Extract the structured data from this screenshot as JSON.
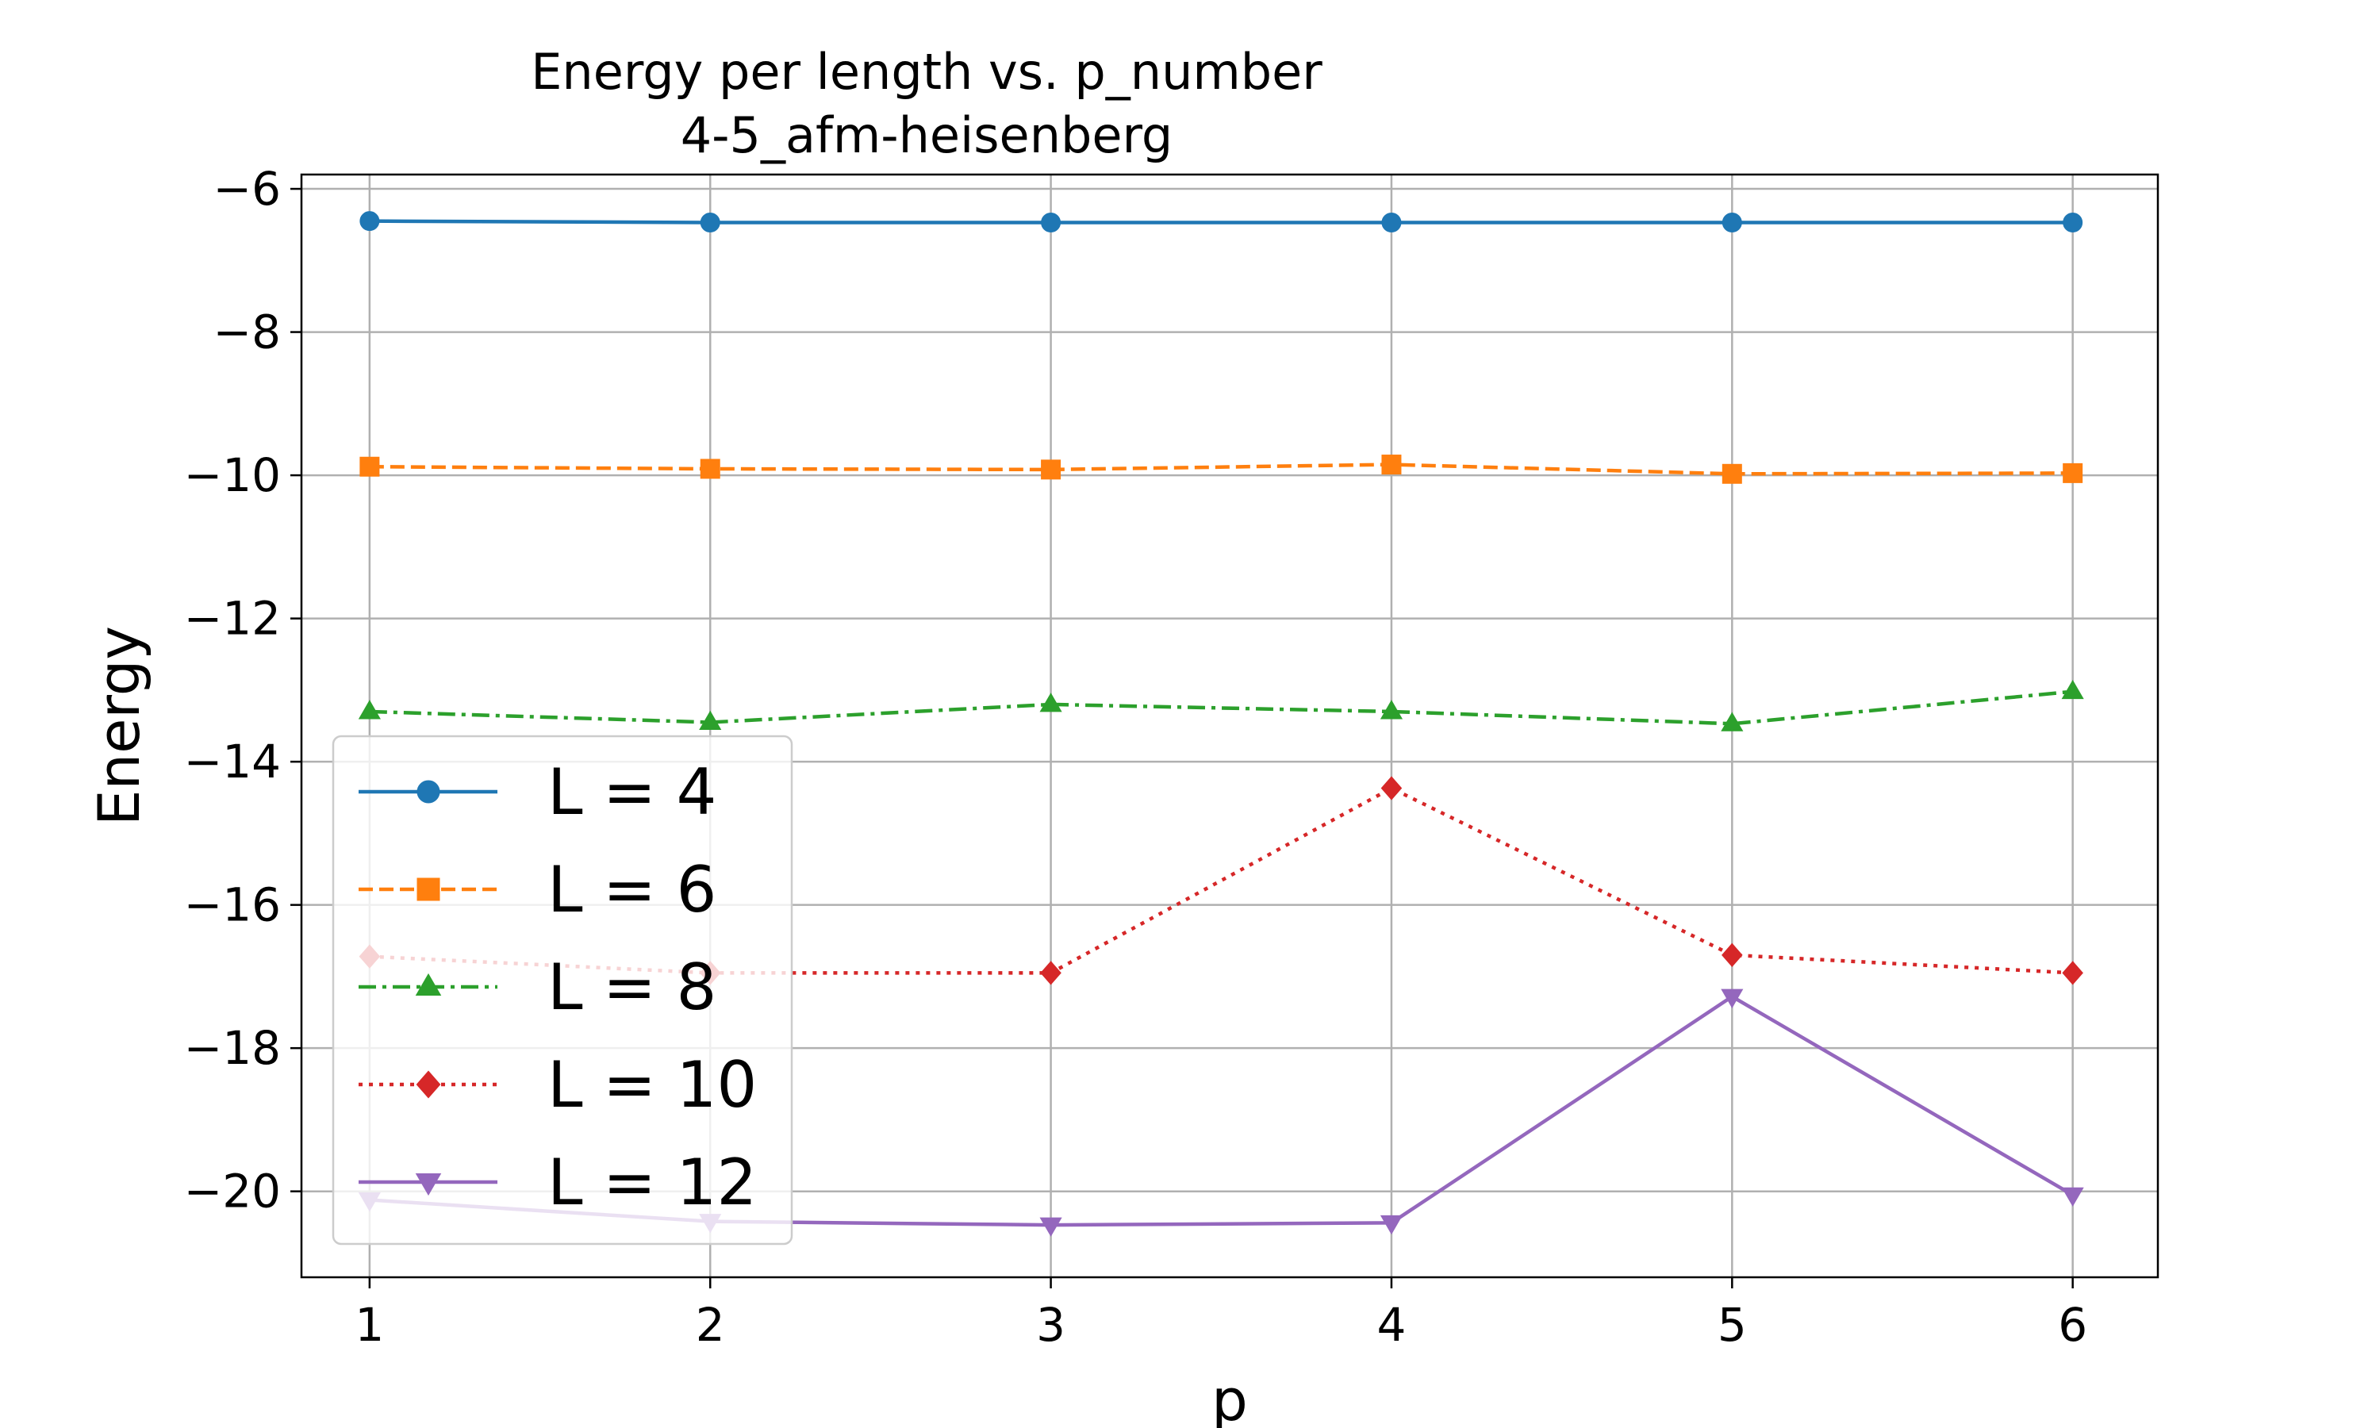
{
  "chart_data": {
    "type": "line",
    "title": "Energy per length vs. p_number",
    "subtitle": "4-5_afm-heisenberg",
    "xlabel": "p",
    "ylabel": "Energy",
    "x": [
      1,
      2,
      3,
      4,
      5,
      6
    ],
    "xlim": [
      0.8,
      6.25
    ],
    "ylim": [
      -21.2,
      -5.8
    ],
    "x_ticks": [
      1,
      2,
      3,
      4,
      5,
      6
    ],
    "y_ticks": [
      -6,
      -8,
      -10,
      -12,
      -14,
      -16,
      -18,
      -20
    ],
    "x_tick_labels": [
      "1",
      "2",
      "3",
      "4",
      "5",
      "6"
    ],
    "y_tick_labels": [
      "−6",
      "−8",
      "−10",
      "−12",
      "−14",
      "−16",
      "−18",
      "−20"
    ],
    "grid": true,
    "legend_position": "lower-left",
    "series": [
      {
        "name": "L = 4",
        "values": [
          -6.45,
          -6.47,
          -6.47,
          -6.47,
          -6.47,
          -6.47
        ],
        "color": "#1f77b4",
        "marker": "circle",
        "dash": "solid"
      },
      {
        "name": "L = 6",
        "values": [
          -9.88,
          -9.91,
          -9.92,
          -9.85,
          -9.98,
          -9.97
        ],
        "color": "#ff7f0e",
        "marker": "square",
        "dash": "dashed"
      },
      {
        "name": "L = 8",
        "values": [
          -13.3,
          -13.45,
          -13.2,
          -13.3,
          -13.47,
          -13.02
        ],
        "color": "#2ca02c",
        "marker": "triangle-up",
        "dash": "dashdot"
      },
      {
        "name": "L = 10",
        "values": [
          -16.72,
          -16.95,
          -16.95,
          -14.37,
          -16.7,
          -16.95
        ],
        "color": "#d62728",
        "marker": "diamond",
        "dash": "dotted"
      },
      {
        "name": "L = 12",
        "values": [
          -20.12,
          -20.42,
          -20.47,
          -20.44,
          -17.28,
          -20.05
        ],
        "color": "#9467bd",
        "marker": "triangle-down",
        "dash": "solid"
      }
    ]
  }
}
